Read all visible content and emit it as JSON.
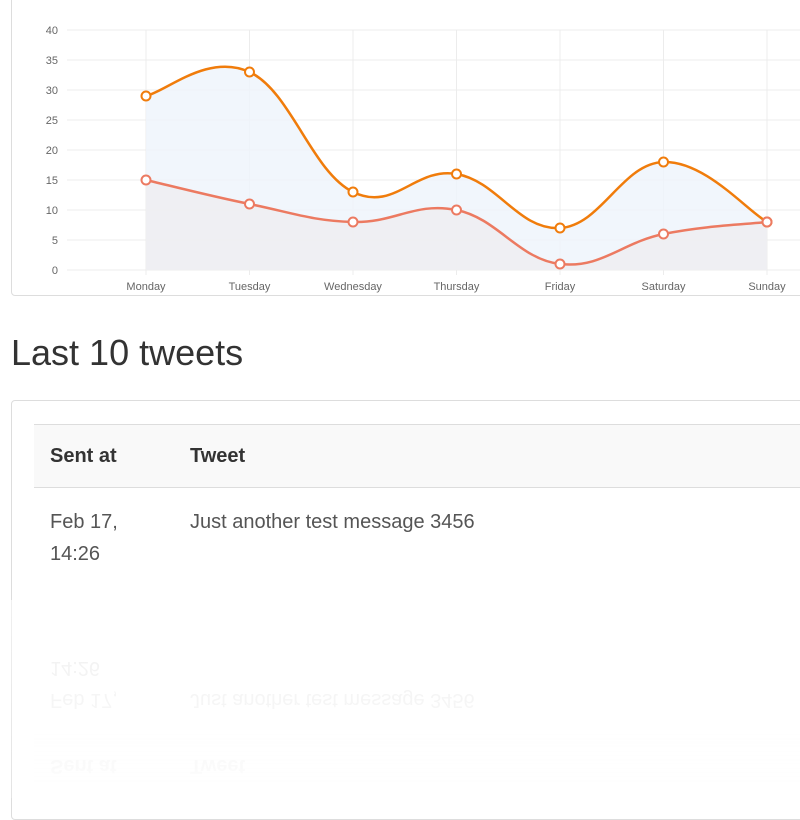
{
  "section_title": "Last 10 tweets",
  "table": {
    "headers": {
      "sent_at": "Sent at",
      "tweet": "Tweet"
    },
    "rows": [
      {
        "sent_at_line1": "Feb 17,",
        "sent_at_line2": "14:26",
        "tweet": "Just another test message 3456"
      }
    ]
  },
  "colors": {
    "series_a": "#f07c0b",
    "series_b": "#ec7a61",
    "fill_a": "#eef5fb",
    "fill_b": "#efedf1"
  },
  "chart_data": {
    "type": "line",
    "categories": [
      "Monday",
      "Tuesday",
      "Wednesday",
      "Thursday",
      "Friday",
      "Saturday",
      "Sunday"
    ],
    "series": [
      {
        "values": [
          29,
          33,
          13,
          16,
          7,
          18,
          8
        ]
      },
      {
        "values": [
          15,
          11,
          8,
          10,
          1,
          6,
          8
        ]
      }
    ],
    "ylim": [
      0,
      40
    ],
    "yticks": [
      0,
      5,
      10,
      15,
      20,
      25,
      30,
      35,
      40
    ],
    "grid": true,
    "smooth": true,
    "filled": true
  }
}
